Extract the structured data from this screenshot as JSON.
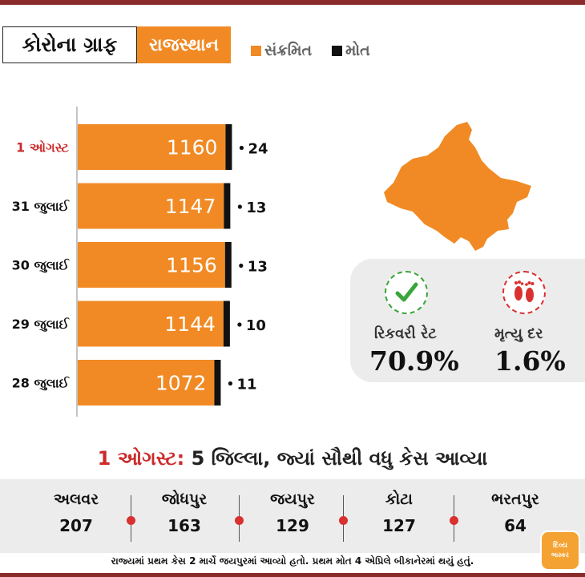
{
  "header": {
    "title": "કોરોના ગ્રાફ",
    "state": "રાજસ્થાન"
  },
  "legend": {
    "infected_label": "સંક્રમિત",
    "deaths_label": "મોત"
  },
  "colors": {
    "infected": "#f18a24",
    "deaths": "#111111",
    "highlight_date": "#cc2a2a",
    "recovery": "#3aa53a",
    "death_rate": "#d93030"
  },
  "chart_data": {
    "type": "bar",
    "orientation": "horizontal",
    "categories": [
      "1 ઓગસ્ટ",
      "31 જુલાઈ",
      "30 જુલાઈ",
      "29 જુલાઈ",
      "28 જુલાઈ"
    ],
    "series": [
      {
        "name": "સંક્રમિત",
        "values": [
          1160,
          1147,
          1156,
          1144,
          1072
        ]
      },
      {
        "name": "મોત",
        "values": [
          24,
          13,
          13,
          10,
          11
        ]
      }
    ],
    "stacked": true
  },
  "stats": {
    "recovery_label": "રિકવરી રેટ",
    "recovery_value": "70.9%",
    "death_rate_label": "મૃત્યુ દર",
    "death_rate_value": "1.6%",
    "recovery_icon": "check-icon",
    "death_icon": "footprints-icon"
  },
  "districts": {
    "heading_date": "1 ઓગસ્ટ:",
    "heading_text": " 5 જિલ્લા, જ્યાં સૌથી વધુ કેસ આવ્યા",
    "items": [
      {
        "name": "અલવર",
        "value": "207"
      },
      {
        "name": "જોધપુર",
        "value": "163"
      },
      {
        "name": "જયપુર",
        "value": "129"
      },
      {
        "name": "કોટા",
        "value": "127"
      },
      {
        "name": "ભરતપુર",
        "value": "64"
      }
    ]
  },
  "footnote": "રાજ્યમાં પ્રથમ કેસ 2 માર્ચે જયપુરમાં આવ્યો હતો. પ્રથમ મોત 4 એપ્રિલે બીકાનેરમાં થયું હતું.",
  "logo": {
    "line1": "દિવ્ય",
    "line2": "ભાસ્કર"
  }
}
